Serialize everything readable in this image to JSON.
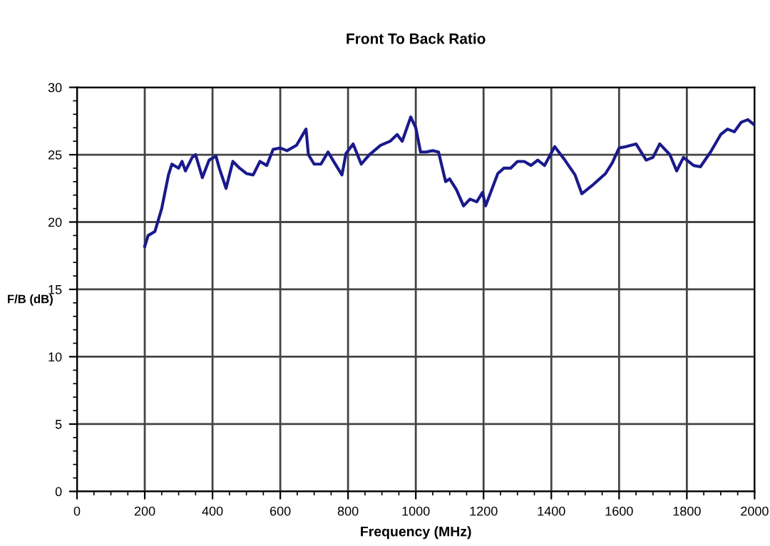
{
  "chart_data": {
    "type": "line",
    "title": "Front To Back Ratio",
    "xlabel": "Frequency (MHz)",
    "ylabel": "F/B (dB)",
    "series": [
      {
        "color": "#1a1a8c",
        "x": [
          200,
          210,
          230,
          250,
          270,
          280,
          300,
          310,
          320,
          340,
          350,
          370,
          390,
          410,
          420,
          440,
          460,
          480,
          500,
          520,
          540,
          560,
          579,
          600,
          620,
          648,
          676,
          683,
          700,
          720,
          741,
          760,
          782,
          794,
          815,
          839,
          863,
          896,
          924,
          945,
          960,
          985,
          1000,
          1014,
          1030,
          1050,
          1067,
          1088,
          1100,
          1120,
          1141,
          1160,
          1180,
          1197,
          1206,
          1242,
          1260,
          1280,
          1300,
          1320,
          1340,
          1360,
          1380,
          1410,
          1440,
          1470,
          1490,
          1520,
          1560,
          1580,
          1600,
          1620,
          1650,
          1680,
          1700,
          1720,
          1750,
          1770,
          1790,
          1800,
          1820,
          1840,
          1870,
          1900,
          1920,
          1940,
          1960,
          1980,
          2000
        ],
        "values": [
          18.2,
          19,
          19.3,
          21,
          23.5,
          24.3,
          24,
          24.5,
          23.8,
          24.8,
          25,
          23.3,
          24.6,
          24.9,
          24,
          22.5,
          24.5,
          24,
          23.6,
          23.5,
          24.5,
          24.2,
          25.4,
          25.5,
          25.3,
          25.7,
          26.9,
          25,
          24.3,
          24.3,
          25.2,
          24.4,
          23.5,
          25.1,
          25.8,
          24.3,
          25,
          25.7,
          26,
          26.5,
          26,
          27.8,
          27,
          25.2,
          25.2,
          25.3,
          25.2,
          23,
          23.2,
          22.4,
          21.2,
          21.7,
          21.5,
          22.2,
          21.2,
          23.6,
          24,
          24,
          24.5,
          24.5,
          24.2,
          24.6,
          24.2,
          25.6,
          24.6,
          23.5,
          22.1,
          22.7,
          23.6,
          24.4,
          25.5,
          25.6,
          25.8,
          24.6,
          24.8,
          25.8,
          25,
          23.8,
          24.8,
          24.6,
          24.2,
          24.1,
          25.2,
          26.5,
          26.9,
          26.7,
          27.4,
          27.6,
          27.2
        ]
      }
    ],
    "xlim": [
      0,
      2000
    ],
    "xticks": [
      0,
      200,
      400,
      600,
      800,
      1000,
      1200,
      1400,
      1600,
      1800,
      2000
    ],
    "ylim": [
      0,
      30
    ],
    "yticks": [
      0,
      5,
      10,
      15,
      20,
      25,
      30
    ],
    "grid": true,
    "marker": "none",
    "line_style": "solid"
  }
}
